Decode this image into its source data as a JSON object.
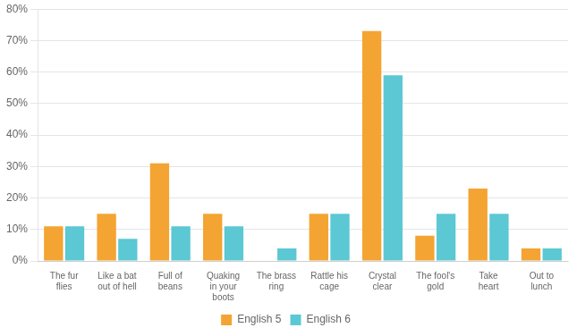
{
  "chart_data": {
    "type": "bar",
    "categories": [
      "The fur\nflies",
      "Like a bat\nout of hell",
      "Full of\nbeans",
      "Quaking\nin your\nboots",
      "The brass\nring",
      "Rattle his\ncage",
      "Crystal\nclear",
      "The fool's\ngold",
      "Take\nheart",
      "Out to\nlunch"
    ],
    "series": [
      {
        "name": "English 5",
        "color": "#F4A432",
        "values": [
          11,
          15,
          31,
          15,
          0,
          15,
          73,
          8,
          23,
          4
        ]
      },
      {
        "name": "English 6",
        "color": "#5BC8D4",
        "values": [
          11,
          7,
          11,
          11,
          4,
          15,
          59,
          15,
          15,
          4
        ]
      }
    ],
    "ylim": [
      0,
      80
    ],
    "yticks": [
      {
        "value": 0,
        "label": "0%"
      },
      {
        "value": 10,
        "label": "10%"
      },
      {
        "value": 20,
        "label": "20%"
      },
      {
        "value": 30,
        "label": "30%"
      },
      {
        "value": 40,
        "label": "40%"
      },
      {
        "value": 50,
        "label": "50%"
      },
      {
        "value": 60,
        "label": "60%"
      },
      {
        "value": 70,
        "label": "70%"
      },
      {
        "value": 80,
        "label": "80%"
      }
    ],
    "grid": true,
    "legend": "bottom"
  }
}
